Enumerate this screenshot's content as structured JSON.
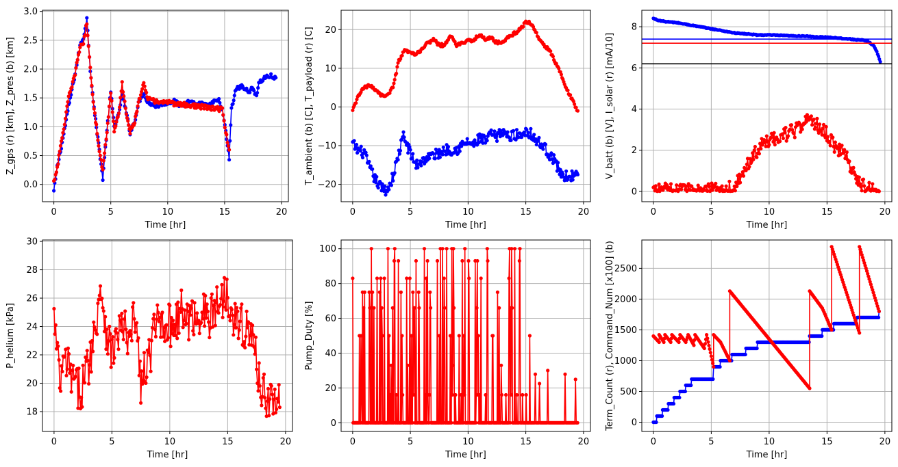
{
  "figure": {
    "background": "#ffffff"
  },
  "colors": {
    "red": "#ff0000",
    "blue": "#0000ff",
    "black": "#000000",
    "grid": "#b0b0b0"
  },
  "chart_data": [
    {
      "id": "altitude",
      "type": "line",
      "xlabel": "Time [hr]",
      "ylabel": "Z_gps (r) [km], Z_pres (b) [km]",
      "xlim": [
        -1,
        20.6
      ],
      "ylim": [
        -0.3,
        3.02
      ],
      "xticks": [
        0,
        5,
        10,
        15,
        20
      ],
      "yticks": [
        0.0,
        0.5,
        1.0,
        1.5,
        2.0,
        2.5,
        3.0
      ],
      "ytick_labels": [
        "0.0",
        "0.5",
        "1.0",
        "1.5",
        "2.0",
        "2.5",
        "3.0"
      ],
      "grid": true,
      "series": [
        {
          "color": "#0000ff",
          "marker": true,
          "noise": 0.04,
          "x": [
            0,
            0.3,
            0.8,
            1.3,
            1.8,
            2.3,
            2.6,
            2.9,
            3.2,
            3.6,
            4.0,
            4.3,
            4.6,
            5.0,
            5.3,
            5.7,
            6.0,
            6.3,
            6.7,
            7.1,
            7.5,
            7.9,
            8.2,
            8.6,
            9.0,
            9.5,
            10.0,
            10.5,
            11.0,
            11.5,
            12.0,
            12.5,
            13.0,
            13.5,
            14.0,
            14.5,
            14.8,
            15.1,
            15.4,
            15.6,
            16.0,
            16.5,
            17.0,
            17.5,
            17.8,
            18.0,
            18.5,
            19.0,
            19.5
          ],
          "y": [
            -0.12,
            0.3,
            0.8,
            1.35,
            1.85,
            2.4,
            2.55,
            2.87,
            2.0,
            1.2,
            0.6,
            0.1,
            0.8,
            1.6,
            1.0,
            1.2,
            1.6,
            1.3,
            0.9,
            1.1,
            1.45,
            1.6,
            1.45,
            1.4,
            1.35,
            1.4,
            1.42,
            1.45,
            1.38,
            1.4,
            1.45,
            1.38,
            1.4,
            1.35,
            1.42,
            1.45,
            1.3,
            0.9,
            0.45,
            1.3,
            1.65,
            1.7,
            1.62,
            1.65,
            1.55,
            1.75,
            1.85,
            1.88,
            1.85
          ]
        },
        {
          "color": "#ff0000",
          "marker": true,
          "noise": 0.04,
          "x": [
            0,
            0.3,
            0.8,
            1.3,
            1.8,
            2.3,
            2.6,
            2.9,
            3.2,
            3.6,
            4.0,
            4.3,
            4.6,
            5.0,
            5.3,
            5.7,
            6.0,
            6.3,
            6.7,
            7.1,
            7.5,
            7.9,
            8.2,
            8.6,
            14.8,
            15.1,
            15.4
          ],
          "y": [
            0.05,
            0.3,
            0.9,
            1.5,
            1.85,
            2.4,
            2.45,
            2.8,
            2.0,
            1.2,
            0.6,
            0.25,
            0.8,
            1.6,
            0.95,
            1.2,
            1.75,
            1.3,
            0.9,
            1.1,
            1.45,
            1.8,
            1.5,
            1.45,
            1.3,
            0.9,
            0.6
          ]
        }
      ]
    },
    {
      "id": "temperature",
      "type": "line",
      "xlabel": "Time [hr]",
      "ylabel": "T_ambient (b) [C], T_payload (r) [C]",
      "xlim": [
        -1,
        20.6
      ],
      "ylim": [
        -24.5,
        25
      ],
      "xticks": [
        0,
        5,
        10,
        15,
        20
      ],
      "yticks": [
        -20,
        -10,
        0,
        10,
        20
      ],
      "ytick_labels": [
        "−20",
        "−10",
        "0",
        "10",
        "20"
      ],
      "grid": true,
      "series": [
        {
          "color": "#0000ff",
          "marker": true,
          "noise": 1.4,
          "x": [
            0,
            0.4,
            1.0,
            1.5,
            2.0,
            2.5,
            3.0,
            3.5,
            4.0,
            4.4,
            5.0,
            5.5,
            6.0,
            6.5,
            7.0,
            7.5,
            8.0,
            8.5,
            9.0,
            9.5,
            10.0,
            10.5,
            11.0,
            11.5,
            12.0,
            12.5,
            13.0,
            13.5,
            14.0,
            14.5,
            15.0,
            15.5,
            16.0,
            16.5,
            17.0,
            17.5,
            18.0,
            18.5,
            19.0,
            19.5
          ],
          "y": [
            -9.5,
            -11,
            -12,
            -16,
            -19,
            -21,
            -21.5,
            -18,
            -12,
            -7.5,
            -12,
            -15,
            -14,
            -13,
            -12.5,
            -12,
            -11,
            -11,
            -11,
            -10,
            -9,
            -10,
            -8,
            -9,
            -7,
            -8,
            -6,
            -8,
            -7,
            -7.5,
            -6,
            -7,
            -9,
            -10,
            -12,
            -14,
            -17,
            -18,
            -17.8,
            -17.5
          ]
        },
        {
          "color": "#ff0000",
          "marker": true,
          "noise": 0.4,
          "x": [
            0,
            0.5,
            1.0,
            1.5,
            2.0,
            2.5,
            3.0,
            3.5,
            4.0,
            4.5,
            5.0,
            5.5,
            6.0,
            6.5,
            7.0,
            7.5,
            8.0,
            8.5,
            9.0,
            9.5,
            10.0,
            10.5,
            11.0,
            11.5,
            12.0,
            12.5,
            13.0,
            13.5,
            14.0,
            14.5,
            15.0,
            15.5,
            16.0,
            16.5,
            17.0,
            17.5,
            18.0,
            18.5,
            19.0,
            19.5
          ],
          "y": [
            -1,
            3,
            5,
            5.5,
            4.5,
            3,
            3,
            5,
            12,
            14.5,
            14,
            13.5,
            15,
            16.5,
            17.5,
            16,
            16,
            18.5,
            16,
            16.5,
            17,
            17.5,
            18.5,
            17.5,
            18,
            16.5,
            17,
            18,
            19,
            20,
            22,
            21.5,
            18.5,
            16,
            15,
            12,
            9,
            5,
            2,
            -1
          ]
        }
      ]
    },
    {
      "id": "power",
      "type": "line",
      "xlabel": "Time [hr]",
      "ylabel": "V_batt (b) [V], I_solar (r) [mA/10]",
      "xlim": [
        -1,
        20.6
      ],
      "ylim": [
        -0.5,
        8.8
      ],
      "xticks": [
        0,
        5,
        10,
        15,
        20
      ],
      "yticks": [
        0,
        2,
        4,
        6,
        8
      ],
      "ytick_labels": [
        "0",
        "2",
        "4",
        "6",
        "8"
      ],
      "grid": true,
      "hlines": [
        {
          "y": 7.4,
          "color": "#0000ff"
        },
        {
          "y": 7.2,
          "color": "#ff0000"
        },
        {
          "y": 6.2,
          "color": "#000000"
        }
      ],
      "series": [
        {
          "color": "#0000ff",
          "marker": true,
          "noise": 0.02,
          "x": [
            0,
            0.5,
            1.0,
            2.0,
            3.0,
            4.0,
            5.0,
            6.0,
            7.0,
            8.0,
            9.0,
            10.0,
            11.0,
            12.0,
            13.0,
            14.0,
            15.0,
            16.0,
            17.0,
            18.0,
            18.5,
            19.0,
            19.3,
            19.6
          ],
          "y": [
            8.4,
            8.3,
            8.25,
            8.2,
            8.1,
            8.0,
            7.9,
            7.8,
            7.7,
            7.65,
            7.6,
            7.6,
            7.58,
            7.55,
            7.55,
            7.5,
            7.5,
            7.45,
            7.4,
            7.35,
            7.3,
            7.1,
            6.8,
            6.3
          ]
        },
        {
          "color": "#ff0000",
          "marker": true,
          "noise": 0.35,
          "noise_floor": 0,
          "x": [
            0,
            2,
            4,
            6,
            7,
            7.5,
            8,
            8.5,
            9,
            9.5,
            10,
            10.5,
            11,
            11.5,
            12,
            12.5,
            13,
            13.5,
            14,
            14.5,
            15,
            15.5,
            16,
            16.5,
            17,
            17.5,
            18,
            18.5,
            19,
            19.5
          ],
          "y": [
            0.05,
            0.05,
            0.05,
            0.1,
            0.2,
            0.6,
            1.2,
            1.6,
            2.0,
            2.3,
            2.5,
            2.6,
            2.7,
            2.8,
            2.9,
            3.0,
            3.2,
            3.6,
            3.3,
            3.0,
            2.8,
            2.3,
            2.0,
            1.8,
            1.3,
            0.7,
            0.3,
            0.15,
            0.05,
            0.0
          ]
        }
      ]
    },
    {
      "id": "helium",
      "type": "line",
      "xlabel": "Time [hr]",
      "ylabel": "P_helium [kPa]",
      "xlim": [
        -1,
        20.6
      ],
      "ylim": [
        16.6,
        30.1
      ],
      "xticks": [
        0,
        5,
        10,
        15,
        20
      ],
      "yticks": [
        18,
        20,
        22,
        24,
        26,
        28,
        30
      ],
      "ytick_labels": [
        "18",
        "20",
        "22",
        "24",
        "26",
        "28",
        "30"
      ],
      "grid": true,
      "series": [
        {
          "color": "#ff0000",
          "marker": true,
          "noise": 1.6,
          "x": [
            0,
            0.5,
            1.0,
            1.5,
            2.0,
            2.5,
            3.0,
            3.5,
            4.0,
            4.5,
            5.0,
            5.5,
            6.0,
            6.5,
            7.0,
            7.5,
            8.0,
            8.5,
            9.0,
            9.5,
            10.0,
            10.5,
            11.0,
            11.5,
            12.0,
            12.5,
            13.0,
            13.5,
            14.0,
            14.5,
            15.0,
            15.5,
            16.0,
            16.5,
            17.0,
            17.5,
            18.0,
            18.5,
            19.0,
            19.5
          ],
          "y": [
            24.5,
            20,
            21.5,
            20.5,
            19.5,
            20,
            21.5,
            23.5,
            27,
            24,
            22,
            23.5,
            24,
            22.5,
            25,
            20,
            21,
            23,
            24.5,
            24.5,
            24,
            24.5,
            25,
            24.5,
            24.5,
            25,
            25,
            24.5,
            25.5,
            26,
            26.5,
            25,
            24,
            24,
            23.5,
            21.5,
            19.5,
            19,
            18.8,
            18.3
          ]
        }
      ]
    },
    {
      "id": "pump",
      "type": "line",
      "xlabel": "Time [hr]",
      "ylabel": "Pump_Duty [%]",
      "xlim": [
        -1,
        20.6
      ],
      "ylim": [
        -5,
        105
      ],
      "xticks": [
        0,
        5,
        10,
        15,
        20
      ],
      "yticks": [
        0,
        20,
        40,
        60,
        80,
        100
      ],
      "ytick_labels": [
        "0",
        "20",
        "40",
        "60",
        "80",
        "100"
      ],
      "grid": true,
      "series": [
        {
          "color": "#ff0000",
          "marker": true,
          "spiky": true,
          "spike_from": 0,
          "spike_to": 15.5,
          "tail_to": 19.5,
          "x": [
            0,
            19.5
          ],
          "y": [
            0,
            0
          ]
        }
      ]
    },
    {
      "id": "commands",
      "type": "line",
      "xlabel": "Time [hr]",
      "ylabel": "Term_Count (r), Command_Num [x100] (b)",
      "xlim": [
        -1,
        20.6
      ],
      "ylim": [
        -150,
        2960
      ],
      "xticks": [
        0,
        5,
        10,
        15,
        20
      ],
      "yticks": [
        0,
        500,
        1000,
        1500,
        2000,
        2500
      ],
      "ytick_labels": [
        "0",
        "500",
        "1000",
        "1500",
        "2000",
        "2500"
      ],
      "grid": true,
      "series": [
        {
          "color": "#0000ff",
          "marker": true,
          "step": true,
          "x": [
            0,
            0.3,
            0.8,
            1.3,
            1.8,
            2.3,
            2.8,
            3.3,
            3.8,
            5.2,
            5.8,
            6.8,
            8.0,
            9.0,
            13.5,
            14.6,
            15.6,
            17.6,
            19.5
          ],
          "y": [
            0,
            100,
            200,
            300,
            400,
            500,
            600,
            700,
            700,
            900,
            1000,
            1100,
            1200,
            1300,
            1400,
            1500,
            1600,
            1700,
            1800
          ]
        },
        {
          "color": "#ff0000",
          "marker": true,
          "x": [
            0,
            0.5,
            0.5,
            0.9,
            1.0,
            1.5,
            1.6,
            2.2,
            2.3,
            2.8,
            3.0,
            3.5,
            3.6,
            4.4,
            4.6,
            5.2,
            5.2,
            5.8,
            6.6,
            6.6,
            13.5,
            13.5,
            14.6,
            15.4,
            15.4,
            17.8,
            17.8,
            19.5
          ],
          "y": [
            1400,
            1300,
            1420,
            1300,
            1420,
            1300,
            1420,
            1300,
            1420,
            1300,
            1420,
            1250,
            1420,
            1200,
            1420,
            900,
            1420,
            1300,
            1000,
            2130,
            550,
            2130,
            1850,
            1500,
            2850,
            1450,
            2850,
            1800
          ]
        }
      ]
    }
  ]
}
